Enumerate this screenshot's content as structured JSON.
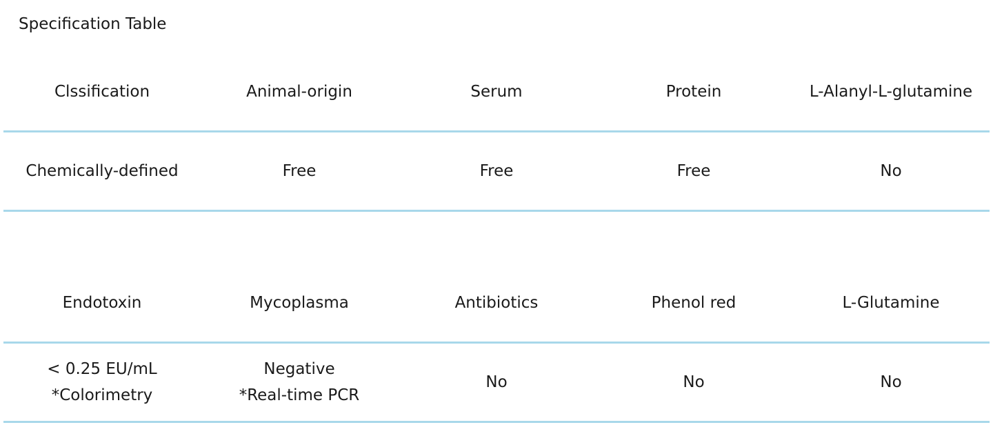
{
  "title": "Specification Table",
  "table1": {
    "headers": [
      "Clssification",
      "Animal-origin",
      "Serum",
      "Protein",
      "L-Alanyl-L-glutamine"
    ],
    "row": [
      "Chemically-defined",
      "Free",
      "Free",
      "Free",
      "No"
    ]
  },
  "table2": {
    "headers": [
      "Endotoxin",
      "Mycoplasma",
      "Antibiotics",
      "Phenol red",
      "L-Glutamine"
    ],
    "row": [
      [
        "< 0.25 EU/mL",
        "*Colorimetry"
      ],
      [
        "Negative",
        "*Real-time PCR"
      ],
      [
        "No"
      ],
      [
        "No"
      ],
      [
        "No"
      ]
    ]
  },
  "colors": {
    "rule": "#a8d8ea"
  }
}
